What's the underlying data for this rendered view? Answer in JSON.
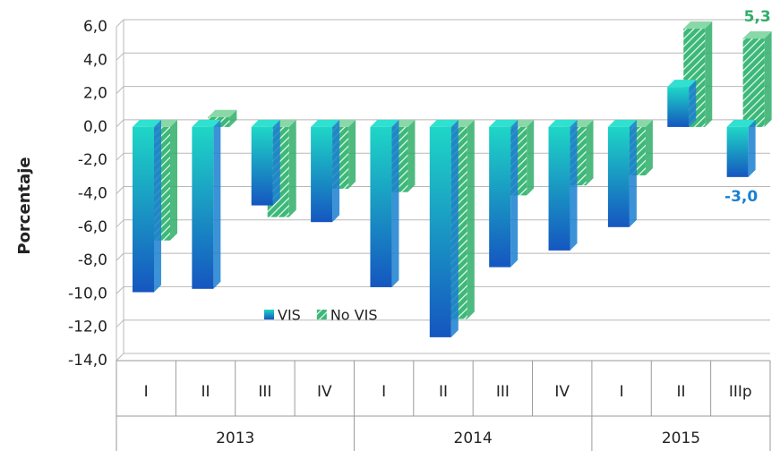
{
  "chart_data": {
    "type": "bar3d",
    "y_label": "Porcentaje",
    "groups": [
      {
        "name": "2013",
        "categories": [
          "I",
          "II",
          "III",
          "IV"
        ]
      },
      {
        "name": "2014",
        "categories": [
          "I",
          "II",
          "III",
          "IV"
        ]
      },
      {
        "name": "2015",
        "categories": [
          "I",
          "II",
          "IIIp"
        ]
      }
    ],
    "series": [
      {
        "name": "VIS",
        "color": "#1a7fd0",
        "values": [
          -9.9,
          -9.7,
          -4.7,
          -5.7,
          -9.6,
          -12.6,
          -8.4,
          -7.4,
          -6.0,
          2.4,
          -3.0
        ],
        "value_labels": [
          null,
          null,
          null,
          null,
          null,
          null,
          null,
          null,
          null,
          null,
          "-3,0"
        ]
      },
      {
        "name": "No VIS",
        "color": "#2fae6a",
        "values": [
          -6.8,
          0.6,
          -5.4,
          -3.7,
          -3.9,
          -11.5,
          -4.1,
          -3.5,
          -2.9,
          5.9,
          5.3
        ],
        "value_labels": [
          null,
          null,
          null,
          null,
          null,
          null,
          null,
          null,
          null,
          null,
          "5,3"
        ]
      }
    ],
    "ylim": [
      -14,
      6
    ],
    "yticks": [
      {
        "value": -14,
        "label": "-14,0"
      },
      {
        "value": -12,
        "label": "-12,0"
      },
      {
        "value": -10,
        "label": "-10,0"
      },
      {
        "value": -8,
        "label": "-8,0"
      },
      {
        "value": -6,
        "label": "-6,0"
      },
      {
        "value": -4,
        "label": "-4,0"
      },
      {
        "value": -2,
        "label": "-2,0"
      },
      {
        "value": 0,
        "label": "0,0"
      },
      {
        "value": 2,
        "label": "2,0"
      },
      {
        "value": 4,
        "label": "4,0"
      },
      {
        "value": 6,
        "label": "6,0"
      }
    ],
    "grid": true
  }
}
